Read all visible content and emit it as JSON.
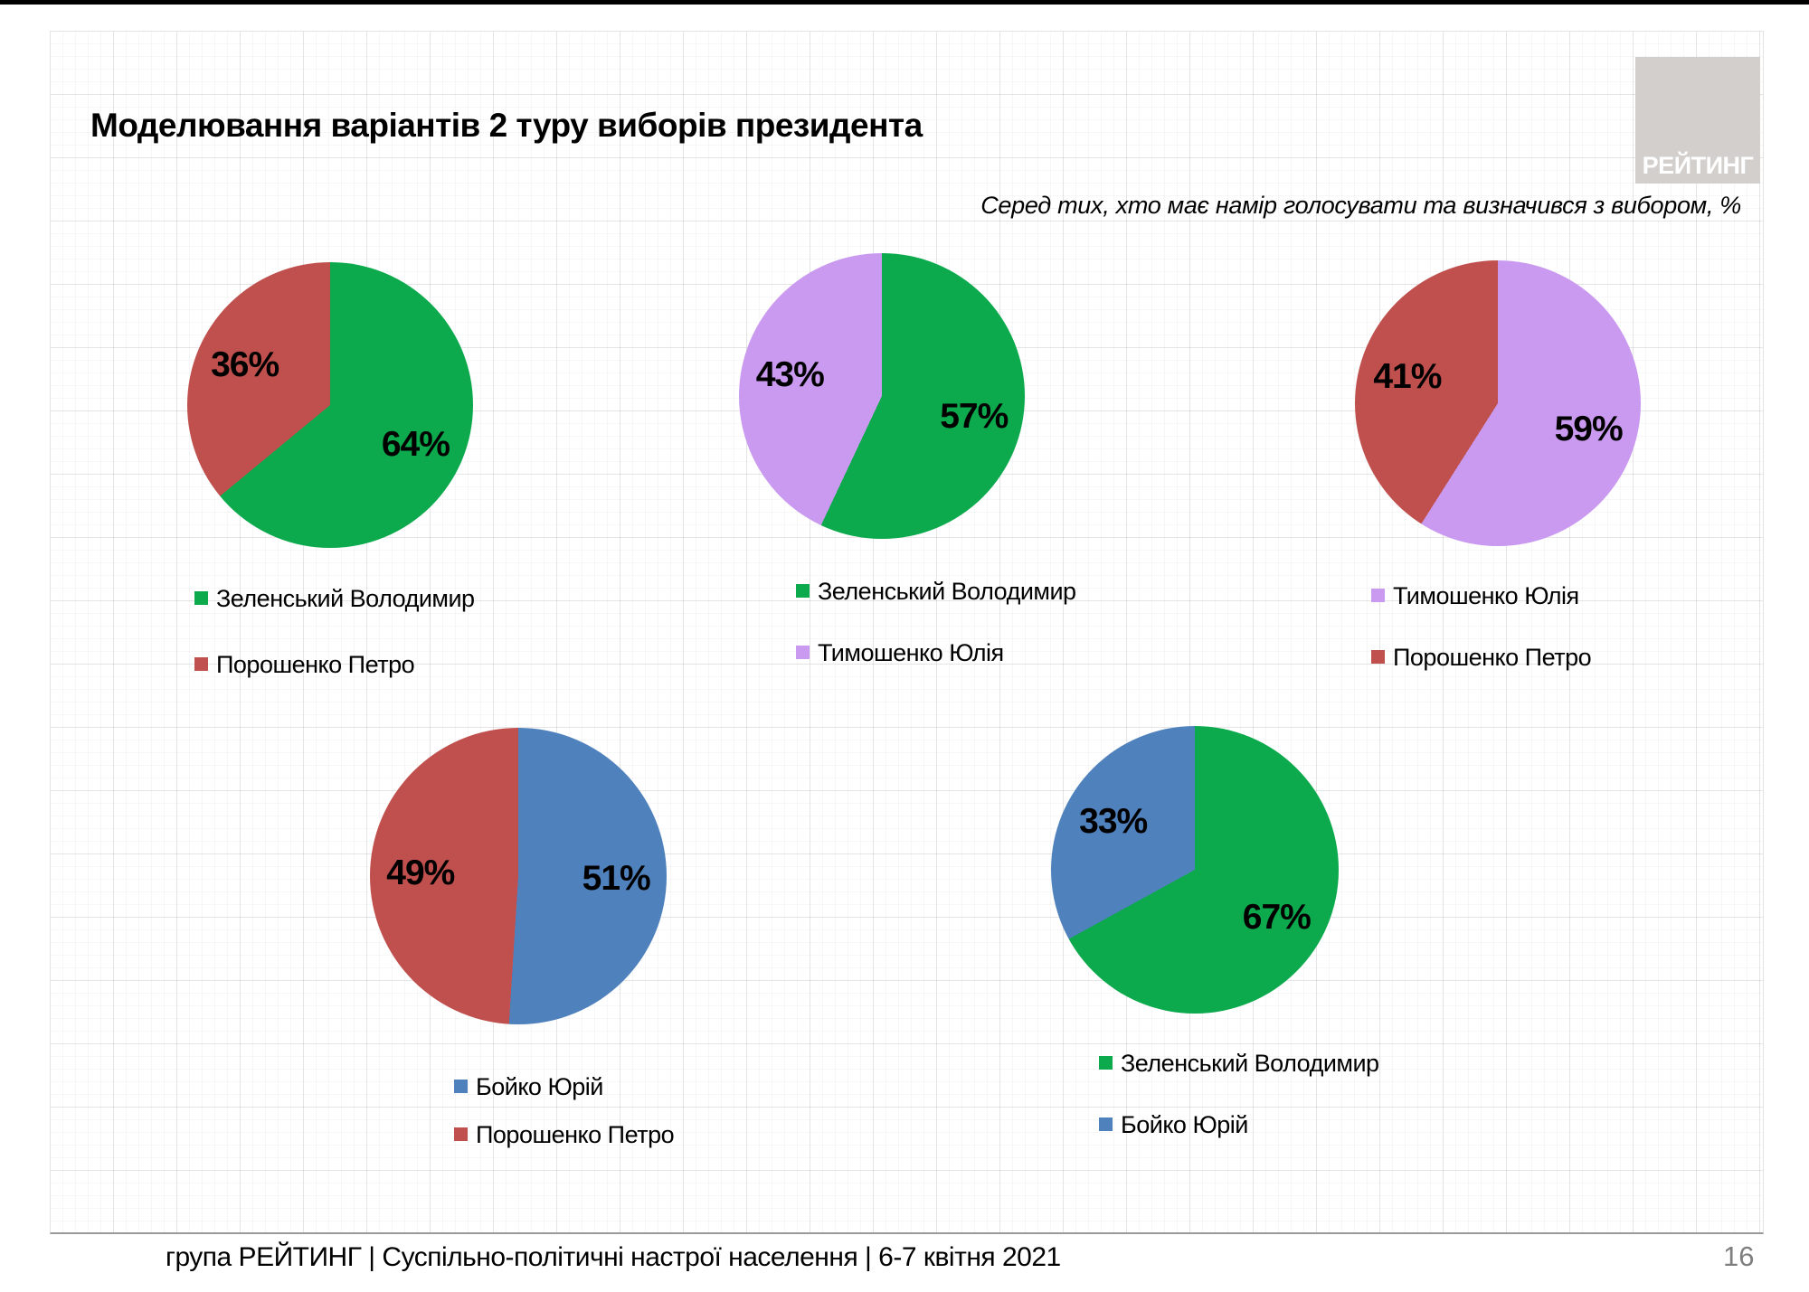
{
  "slide": {
    "title": "Моделювання варіантів 2 туру виборів президента",
    "subtitle": "Серед тих, хто має намір голосувати  та визначився з вибором, %",
    "footer": "група РЕЙТИНГ | Суспільно-політичні настрої населення | 6-7 квітня 2021",
    "page_number": "16"
  },
  "logo": {
    "text": "РЕЙТИНГ"
  },
  "palette": {
    "zelensky_green": "#0ca94d",
    "poroshenko_red": "#c0504d",
    "tymoshenko_purple": "#c99af0",
    "boyko_blue": "#4f81bd"
  },
  "chart_data": [
    {
      "type": "pie",
      "units": "%",
      "legend_position": "bottom",
      "series": [
        {
          "name": "Зеленський Володимир",
          "value": 64,
          "color": "#0ca94d"
        },
        {
          "name": "Порошенко Петро",
          "value": 36,
          "color": "#c0504d"
        }
      ]
    },
    {
      "type": "pie",
      "units": "%",
      "legend_position": "bottom",
      "series": [
        {
          "name": "Зеленський Володимир",
          "value": 57,
          "color": "#0ca94d"
        },
        {
          "name": "Тимошенко Юлія",
          "value": 43,
          "color": "#c99af0"
        }
      ]
    },
    {
      "type": "pie",
      "units": "%",
      "legend_position": "bottom",
      "series": [
        {
          "name": "Тимошенко Юлія",
          "value": 59,
          "color": "#c99af0"
        },
        {
          "name": "Порошенко Петро",
          "value": 41,
          "color": "#c0504d"
        }
      ]
    },
    {
      "type": "pie",
      "units": "%",
      "legend_position": "bottom",
      "series": [
        {
          "name": "Бойко Юрій",
          "value": 51,
          "color": "#4f81bd"
        },
        {
          "name": "Порошенко Петро",
          "value": 49,
          "color": "#c0504d"
        }
      ]
    },
    {
      "type": "pie",
      "units": "%",
      "legend_position": "bottom",
      "series": [
        {
          "name": "Зеленський Володимир",
          "value": 67,
          "color": "#0ca94d"
        },
        {
          "name": "Бойко Юрій",
          "value": 33,
          "color": "#4f81bd"
        }
      ]
    }
  ]
}
